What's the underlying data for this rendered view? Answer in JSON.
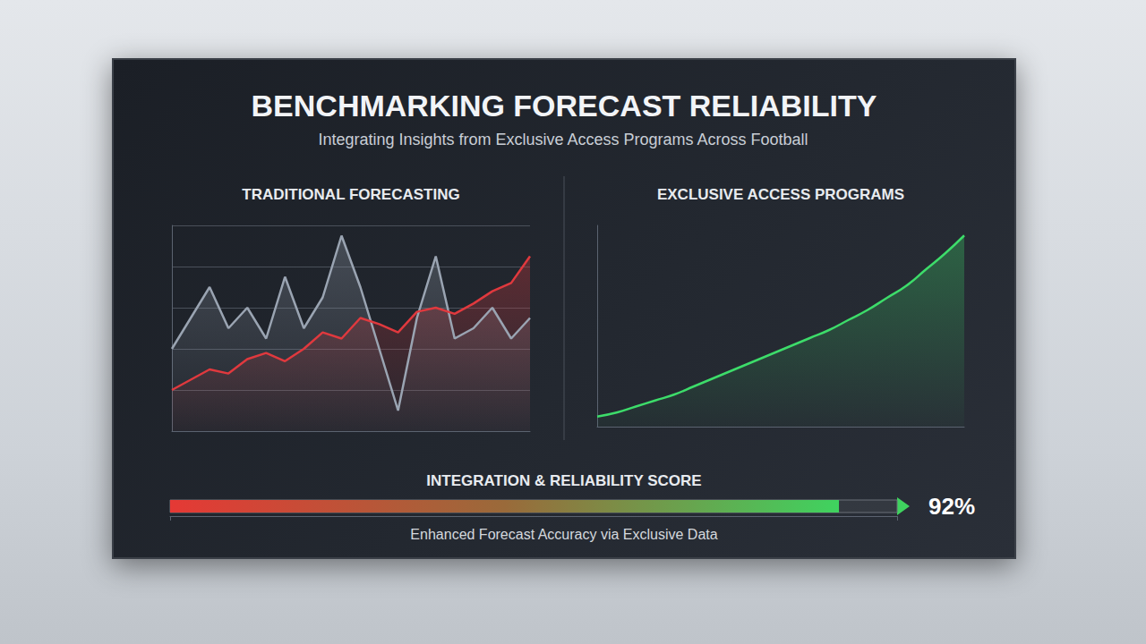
{
  "title": "BENCHMARKING FORECAST RELIABILITY",
  "subtitle": "Integrating Insights from Exclusive Access Programs Across Football",
  "chart_data": [
    {
      "type": "line",
      "title": "TRADITIONAL FORECASTING",
      "x": [
        0,
        1,
        2,
        3,
        4,
        5,
        6,
        7,
        8,
        9,
        10,
        11,
        12,
        13,
        14,
        15,
        16,
        17,
        18,
        19
      ],
      "series": [
        {
          "color": "#9aa4b2",
          "line_style": "solid",
          "marker": "none",
          "values": [
            40,
            55,
            70,
            50,
            60,
            45,
            75,
            50,
            65,
            95,
            70,
            40,
            10,
            55,
            85,
            45,
            50,
            60,
            45,
            55
          ]
        },
        {
          "color": "#e0393e",
          "line_style": "solid",
          "marker": "none",
          "values": [
            20,
            25,
            30,
            28,
            35,
            38,
            34,
            40,
            48,
            45,
            55,
            52,
            48,
            58,
            60,
            57,
            62,
            68,
            72,
            85
          ]
        }
      ],
      "xlim": [
        0,
        19
      ],
      "ylim": [
        0,
        100
      ],
      "yticks": [
        0,
        20,
        40,
        60,
        80,
        100
      ],
      "grid": true,
      "tick_labels": false
    },
    {
      "type": "line",
      "title": "EXCLUSIVE ACCESS PROGRAMS",
      "x": [
        0,
        1,
        2,
        3,
        4,
        5,
        6,
        7,
        8,
        9,
        10,
        11,
        12,
        13,
        14,
        15,
        16,
        17,
        18,
        19
      ],
      "series": [
        {
          "color": "#3ddc6a",
          "line_style": "smooth",
          "marker": "none",
          "values": [
            5,
            7,
            10,
            13,
            16,
            20,
            24,
            28,
            32,
            36,
            40,
            44,
            48,
            53,
            58,
            64,
            70,
            78,
            86,
            95
          ]
        }
      ],
      "xlim": [
        0,
        19
      ],
      "ylim": [
        0,
        100
      ],
      "grid": false,
      "tick_labels": false
    },
    {
      "type": "bar",
      "orientation": "horizontal",
      "title": "INTEGRATION & RELIABILITY SCORE",
      "subtitle": "Enhanced Forecast Accuracy via Exclusive Data",
      "categories": [
        null
      ],
      "values": [
        92
      ],
      "value_labels": [
        "92%"
      ],
      "data_labels": true,
      "color": "#3fd35f",
      "xlim": [
        0,
        100
      ],
      "xticks": [
        0,
        100
      ],
      "tick_labels": false
    }
  ]
}
